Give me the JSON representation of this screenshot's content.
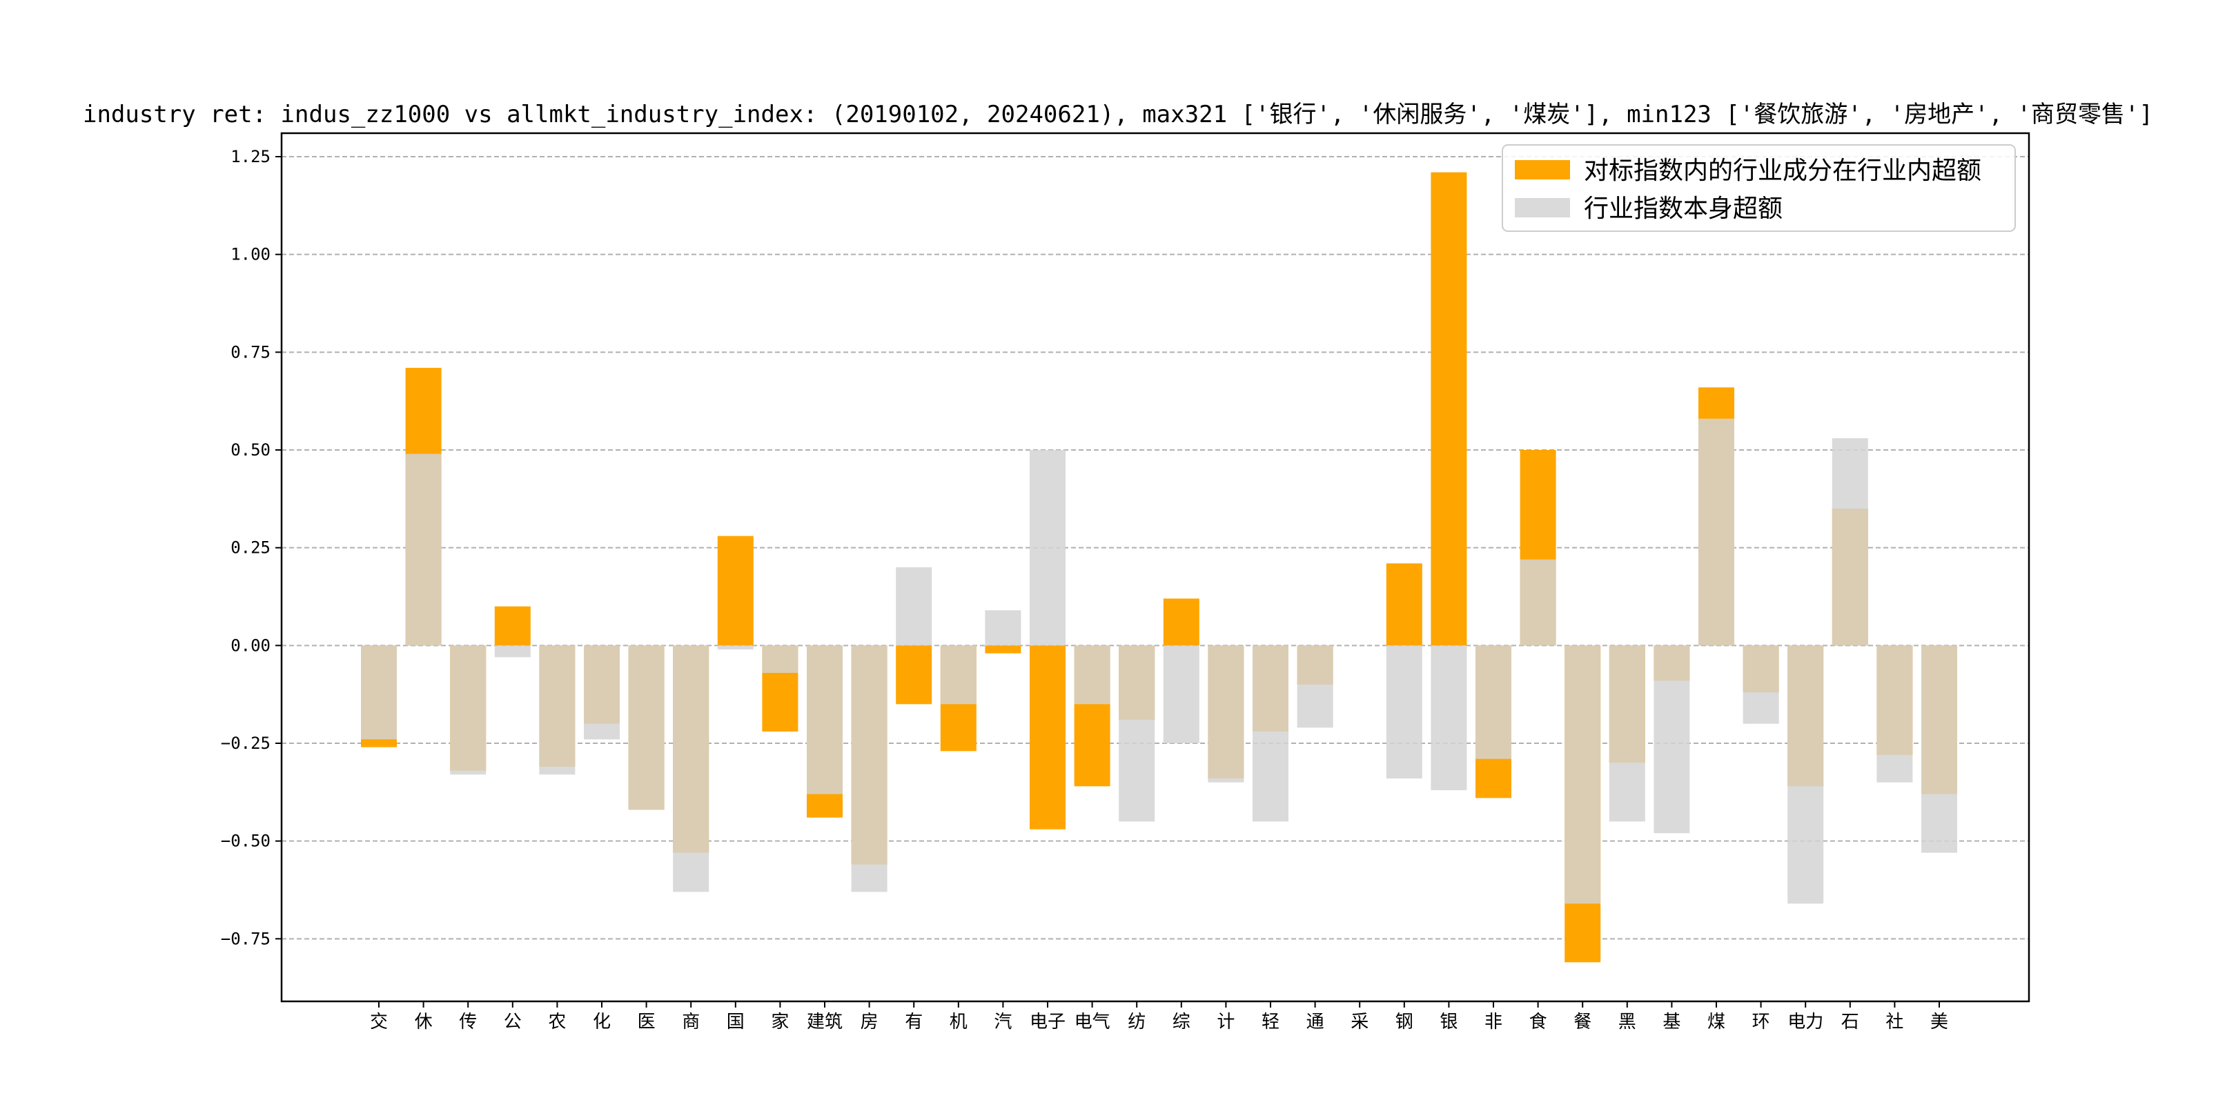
{
  "chart_data": {
    "type": "bar",
    "title": "industry ret: indus_zz1000 vs allmkt_industry_index: (20190102, 20240621), max321 ['银行', '休闲服务', '煤炭'], min123 ['餐饮旅游', '房地产', '商贸零售']",
    "xlabel": "",
    "ylabel": "",
    "ylim": [
      -0.91,
      1.31
    ],
    "yticks": [
      -0.75,
      -0.5,
      -0.25,
      0.0,
      0.25,
      0.5,
      0.75,
      1.0,
      1.25
    ],
    "ytick_labels": [
      "−0.75",
      "−0.50",
      "−0.25",
      "0.00",
      "0.25",
      "0.50",
      "0.75",
      "1.00",
      "1.25"
    ],
    "grid": "horizontal dashed",
    "legend_position": "upper right",
    "categories": [
      "交",
      "休",
      "传",
      "公",
      "农",
      "化",
      "医",
      "商",
      "国",
      "家",
      "建筑",
      "房",
      "有",
      "机",
      "汽",
      "电子",
      "电气",
      "纺",
      "综",
      "计",
      "轻",
      "通",
      "采",
      "钢",
      "银",
      "非",
      "食",
      "餐",
      "黑",
      "基",
      "煤",
      "环",
      "电力",
      "石",
      "社",
      "美"
    ],
    "series": [
      {
        "name": "对标指数内的行业成分在行业内超额",
        "color": "#FFA500",
        "values": [
          -0.26,
          0.71,
          -0.32,
          0.1,
          -0.31,
          -0.2,
          -0.42,
          -0.53,
          0.28,
          -0.22,
          -0.44,
          -0.56,
          -0.15,
          -0.27,
          -0.02,
          -0.47,
          -0.36,
          -0.19,
          0.12,
          -0.34,
          -0.22,
          -0.1,
          0.0,
          0.21,
          1.21,
          -0.39,
          0.5,
          -0.81,
          -0.3,
          -0.09,
          0.66,
          -0.12,
          -0.36,
          0.35,
          -0.28,
          -0.38
        ]
      },
      {
        "name": "行业指数本身超额",
        "color": "#D3D3D3",
        "values": [
          -0.24,
          0.49,
          -0.33,
          -0.03,
          -0.33,
          -0.24,
          -0.42,
          -0.63,
          -0.01,
          -0.07,
          -0.38,
          -0.63,
          0.2,
          -0.15,
          0.09,
          0.5,
          -0.15,
          -0.45,
          -0.25,
          -0.35,
          -0.45,
          -0.21,
          0.0,
          -0.34,
          -0.37,
          -0.29,
          0.22,
          -0.66,
          -0.45,
          -0.48,
          0.58,
          -0.2,
          -0.66,
          0.53,
          -0.35,
          -0.53
        ]
      }
    ]
  }
}
